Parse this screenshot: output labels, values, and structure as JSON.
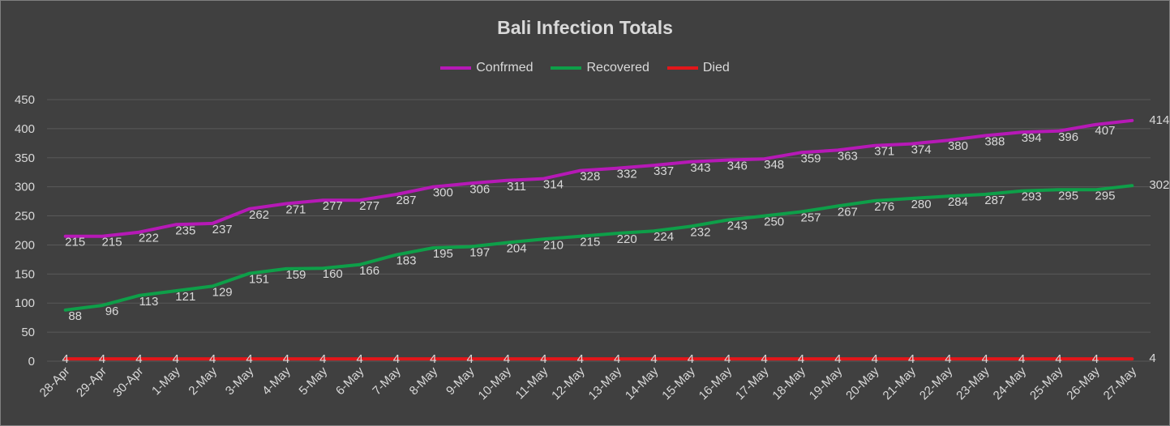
{
  "chart_data": {
    "type": "line",
    "title": "Bali Infection Totals",
    "categories": [
      "28-Apr",
      "29-Apr",
      "30-Apr",
      "1-May",
      "2-May",
      "3-May",
      "4-May",
      "5-May",
      "6-May",
      "7-May",
      "8-May",
      "9-May",
      "10-May",
      "11-May",
      "12-May",
      "13-May",
      "14-May",
      "15-May",
      "16-May",
      "17-May",
      "18-May",
      "19-May",
      "20-May",
      "21-May",
      "22-May",
      "23-May",
      "24-May",
      "25-May",
      "26-May",
      "27-May"
    ],
    "series": [
      {
        "name": "Confrmed",
        "color": "#b619b6",
        "values": [
          215,
          215,
          222,
          235,
          237,
          262,
          271,
          277,
          277,
          287,
          300,
          306,
          311,
          314,
          328,
          332,
          337,
          343,
          346,
          348,
          359,
          363,
          371,
          374,
          380,
          388,
          394,
          396,
          407,
          414
        ]
      },
      {
        "name": "Recovered",
        "color": "#0e9f49",
        "values": [
          88,
          96,
          113,
          121,
          129,
          151,
          159,
          160,
          166,
          183,
          195,
          197,
          204,
          210,
          215,
          220,
          224,
          232,
          243,
          250,
          257,
          267,
          276,
          280,
          284,
          287,
          293,
          295,
          295,
          302
        ]
      },
      {
        "name": "Died",
        "color": "#e3161a",
        "values": [
          4,
          4,
          4,
          4,
          4,
          4,
          4,
          4,
          4,
          4,
          4,
          4,
          4,
          4,
          4,
          4,
          4,
          4,
          4,
          4,
          4,
          4,
          4,
          4,
          4,
          4,
          4,
          4,
          4,
          4
        ]
      }
    ],
    "ylim": [
      0,
      450
    ],
    "yticks": [
      0,
      50,
      100,
      150,
      200,
      250,
      300,
      350,
      400,
      450
    ],
    "grid": true,
    "legend_position": "top",
    "xlabel": "",
    "ylabel": "",
    "colors": {
      "background": "#404040",
      "text": "#d9d9d9",
      "grid": "#595959"
    }
  }
}
